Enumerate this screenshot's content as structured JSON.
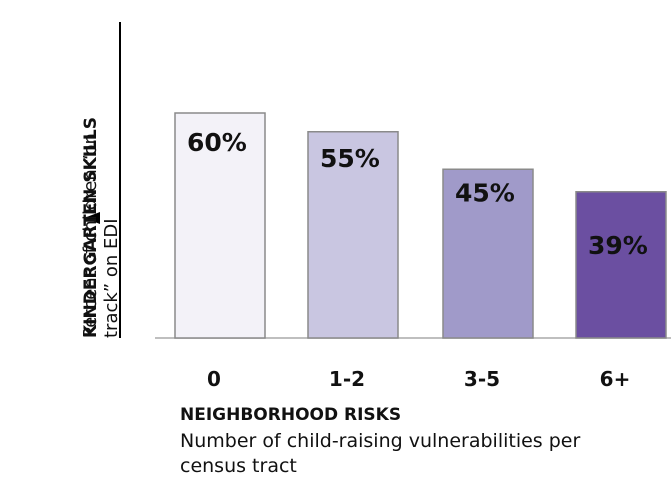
{
  "chart_data": {
    "type": "bar",
    "categories": [
      "0",
      "1-2",
      "3-5",
      "6+"
    ],
    "values": [
      60,
      55,
      45,
      39
    ],
    "value_labels": [
      "60%",
      "55%",
      "45%",
      "39%"
    ],
    "colors": [
      "#f3f2f8",
      "#c9c6e1",
      "#a09ac9",
      "#6b4fa1"
    ],
    "ylabel": [
      "KINDERGARTEN SKILLS",
      "Percent of children “on",
      "track” on EDI"
    ],
    "xlabel": [
      "NEIGHBORHOOD RISKS",
      "Number of child-raising vulnerabilities per",
      "census tract"
    ]
  }
}
